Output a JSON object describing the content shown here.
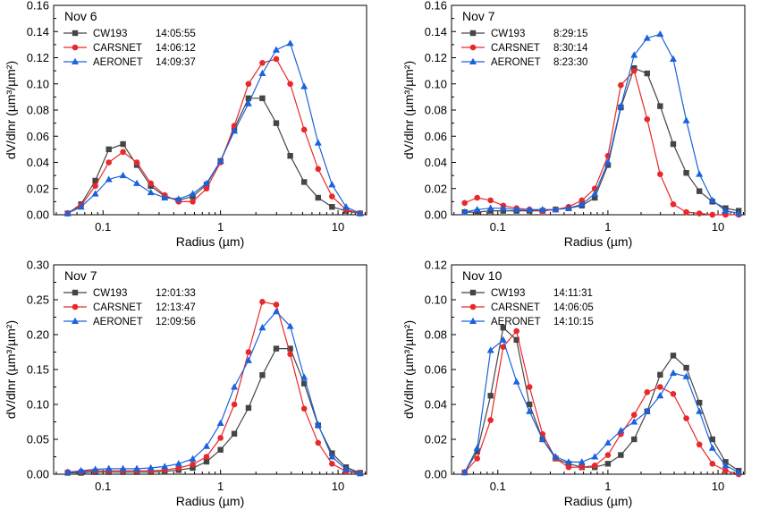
{
  "colors": {
    "cw193": "#454545",
    "carsnet": "#e8292b",
    "aeronet": "#1a62de"
  },
  "chart_data": [
    {
      "type": "line",
      "title": "Nov 6",
      "xlabel": "Radius (µm)",
      "ylabel": "dV/dlnr (µm³/µm²)",
      "xscale": "log",
      "xlim": [
        0.038,
        17.5
      ],
      "ylim": [
        0,
        0.16
      ],
      "yticks": [
        "0.00",
        "0.02",
        "0.04",
        "0.06",
        "0.08",
        "0.10",
        "0.12",
        "0.14",
        "0.16"
      ],
      "xticks": [
        "0.1",
        "1",
        "10"
      ],
      "legend_position": "top-left",
      "x": [
        0.05,
        0.065,
        0.086,
        0.112,
        0.148,
        0.194,
        0.255,
        0.335,
        0.44,
        0.58,
        0.76,
        1.0,
        1.31,
        1.73,
        2.27,
        2.98,
        3.92,
        5.15,
        6.77,
        8.89,
        11.7,
        15.4
      ],
      "series": [
        {
          "name": "CW193",
          "time": "14:05:55",
          "marker": "square",
          "values": [
            0.001,
            0.008,
            0.026,
            0.05,
            0.054,
            0.038,
            0.022,
            0.014,
            0.011,
            0.014,
            0.023,
            0.041,
            0.066,
            0.089,
            0.089,
            0.07,
            0.045,
            0.025,
            0.013,
            0.006,
            0.003,
            0.001
          ]
        },
        {
          "name": "CARSNET",
          "time": "14:06:12",
          "marker": "circle",
          "values": [
            0.001,
            0.007,
            0.022,
            0.04,
            0.048,
            0.04,
            0.024,
            0.015,
            0.01,
            0.01,
            0.02,
            0.04,
            0.068,
            0.1,
            0.116,
            0.119,
            0.1,
            0.065,
            0.035,
            0.014,
            0.004,
            0.001
          ]
        },
        {
          "name": "AERONET",
          "time": "14:09:37",
          "marker": "triangle",
          "values": [
            0.001,
            0.006,
            0.016,
            0.027,
            0.03,
            0.024,
            0.017,
            0.013,
            0.012,
            0.016,
            0.024,
            0.041,
            0.064,
            0.085,
            0.108,
            0.126,
            0.131,
            0.098,
            0.055,
            0.023,
            0.006,
            0.001
          ]
        }
      ]
    },
    {
      "type": "line",
      "title": "Nov 7",
      "xlabel": "Radius (µm)",
      "ylabel": "dV/dlnr (µm³/µm²)",
      "xscale": "log",
      "xlim": [
        0.038,
        17.5
      ],
      "ylim": [
        0,
        0.16
      ],
      "yticks": [
        "0.00",
        "0.02",
        "0.04",
        "0.06",
        "0.08",
        "0.10",
        "0.12",
        "0.14",
        "0.16"
      ],
      "xticks": [
        "0.1",
        "1",
        "10"
      ],
      "legend_position": "top-left",
      "x": [
        0.05,
        0.065,
        0.086,
        0.112,
        0.148,
        0.194,
        0.255,
        0.335,
        0.44,
        0.58,
        0.76,
        1.0,
        1.31,
        1.73,
        2.27,
        2.98,
        3.92,
        5.15,
        6.77,
        8.89,
        11.7,
        15.4
      ],
      "series": [
        {
          "name": "CW193",
          "time": "8:29:15",
          "marker": "square",
          "values": [
            0.002,
            0.002,
            0.003,
            0.003,
            0.003,
            0.003,
            0.003,
            0.004,
            0.005,
            0.007,
            0.013,
            0.038,
            0.082,
            0.112,
            0.108,
            0.083,
            0.054,
            0.032,
            0.018,
            0.01,
            0.005,
            0.003
          ]
        },
        {
          "name": "CARSNET",
          "time": "8:30:14",
          "marker": "circle",
          "values": [
            0.009,
            0.013,
            0.011,
            0.007,
            0.005,
            0.004,
            0.003,
            0.004,
            0.006,
            0.011,
            0.02,
            0.045,
            0.099,
            0.11,
            0.073,
            0.031,
            0.008,
            0.002,
            0.001,
            0.0,
            0.0,
            0.0
          ]
        },
        {
          "name": "AERONET",
          "time": "8:23:30",
          "marker": "triangle",
          "values": [
            0.002,
            0.004,
            0.005,
            0.005,
            0.004,
            0.004,
            0.004,
            0.004,
            0.005,
            0.008,
            0.016,
            0.04,
            0.083,
            0.122,
            0.135,
            0.138,
            0.119,
            0.072,
            0.031,
            0.011,
            0.003,
            0.001
          ]
        }
      ]
    },
    {
      "type": "line",
      "title": "Nov 7",
      "xlabel": "Radius (µm)",
      "ylabel": "dV/dlnr (µm³/µm²)",
      "xscale": "log",
      "xlim": [
        0.038,
        17.5
      ],
      "ylim": [
        0,
        0.3
      ],
      "yticks": [
        "0.00",
        "0.05",
        "0.10",
        "0.15",
        "0.20",
        "0.25",
        "0.30"
      ],
      "xticks": [
        "0.1",
        "1",
        "10"
      ],
      "legend_position": "top-left",
      "x": [
        0.05,
        0.065,
        0.086,
        0.112,
        0.148,
        0.194,
        0.255,
        0.335,
        0.44,
        0.58,
        0.76,
        1.0,
        1.31,
        1.73,
        2.27,
        2.98,
        3.92,
        5.15,
        6.77,
        8.89,
        11.7,
        15.4
      ],
      "series": [
        {
          "name": "CW193",
          "time": "12:01:33",
          "marker": "square",
          "values": [
            0.002,
            0.002,
            0.003,
            0.003,
            0.003,
            0.003,
            0.003,
            0.004,
            0.006,
            0.009,
            0.018,
            0.035,
            0.058,
            0.095,
            0.142,
            0.18,
            0.18,
            0.13,
            0.07,
            0.03,
            0.01,
            0.002
          ]
        },
        {
          "name": "CARSNET",
          "time": "12:13:47",
          "marker": "circle",
          "values": [
            0.003,
            0.004,
            0.005,
            0.005,
            0.005,
            0.005,
            0.005,
            0.006,
            0.009,
            0.014,
            0.025,
            0.052,
            0.1,
            0.175,
            0.247,
            0.243,
            0.172,
            0.094,
            0.045,
            0.015,
            0.004,
            0.001
          ]
        },
        {
          "name": "AERONET",
          "time": "12:09:56",
          "marker": "triangle",
          "values": [
            0.003,
            0.005,
            0.007,
            0.008,
            0.008,
            0.008,
            0.009,
            0.011,
            0.015,
            0.022,
            0.04,
            0.073,
            0.125,
            0.163,
            0.21,
            0.233,
            0.212,
            0.139,
            0.071,
            0.025,
            0.007,
            0.001
          ]
        }
      ]
    },
    {
      "type": "line",
      "title": "Nov 10",
      "xlabel": "Radius (µm)",
      "ylabel": "dV/dlnr (µm³/µm²)",
      "xscale": "log",
      "xlim": [
        0.038,
        17.5
      ],
      "ylim": [
        0,
        0.12
      ],
      "yticks": [
        "0.00",
        "0.02",
        "0.04",
        "0.06",
        "0.08",
        "0.10",
        "0.12"
      ],
      "xticks": [
        "0.1",
        "1",
        "10"
      ],
      "legend_position": "top-left",
      "x": [
        0.05,
        0.065,
        0.086,
        0.112,
        0.148,
        0.194,
        0.255,
        0.335,
        0.44,
        0.58,
        0.76,
        1.0,
        1.31,
        1.73,
        2.27,
        2.98,
        3.92,
        5.15,
        6.77,
        8.89,
        11.7,
        15.4
      ],
      "series": [
        {
          "name": "CW193",
          "time": "14:11:31",
          "marker": "square",
          "values": [
            0.001,
            0.013,
            0.045,
            0.084,
            0.077,
            0.04,
            0.02,
            0.009,
            0.006,
            0.004,
            0.004,
            0.006,
            0.011,
            0.02,
            0.036,
            0.057,
            0.068,
            0.061,
            0.041,
            0.02,
            0.007,
            0.002
          ]
        },
        {
          "name": "CARSNET",
          "time": "14:06:05",
          "marker": "circle",
          "values": [
            0.001,
            0.009,
            0.031,
            0.073,
            0.082,
            0.05,
            0.023,
            0.009,
            0.004,
            0.004,
            0.005,
            0.011,
            0.023,
            0.034,
            0.047,
            0.05,
            0.046,
            0.032,
            0.017,
            0.006,
            0.002,
            0.0
          ]
        },
        {
          "name": "AERONET",
          "time": "14:10:15",
          "marker": "triangle",
          "values": [
            0.001,
            0.015,
            0.071,
            0.077,
            0.053,
            0.036,
            0.02,
            0.01,
            0.007,
            0.007,
            0.01,
            0.018,
            0.025,
            0.03,
            0.036,
            0.045,
            0.058,
            0.056,
            0.036,
            0.015,
            0.005,
            0.001
          ]
        }
      ]
    }
  ]
}
